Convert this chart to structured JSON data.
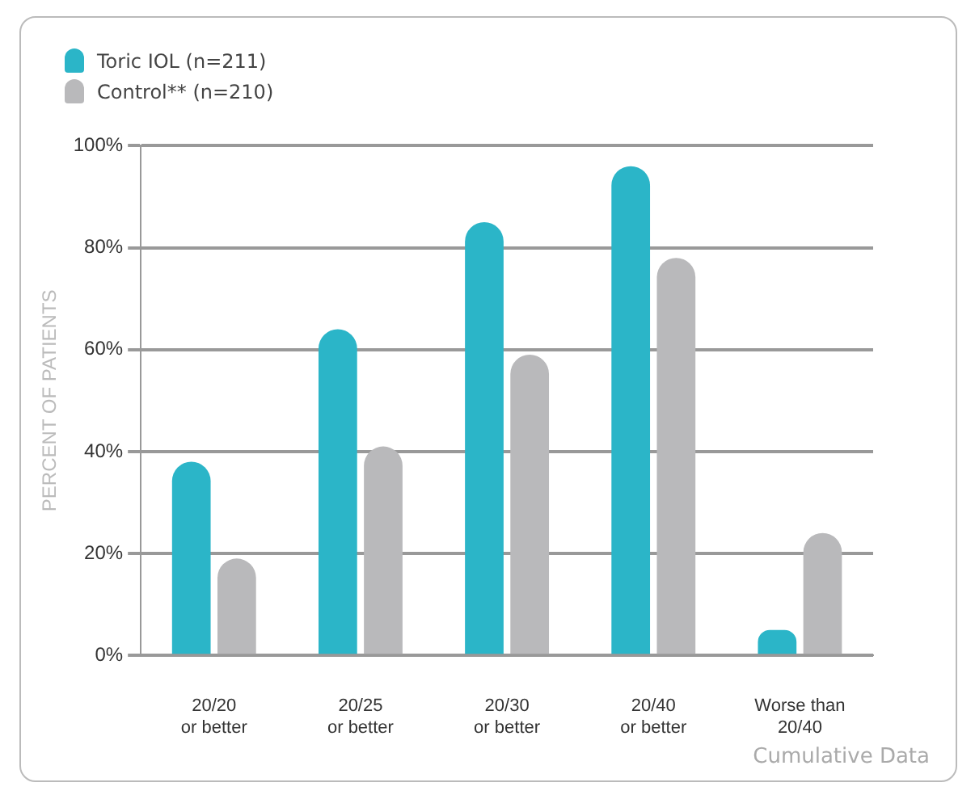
{
  "chart_data": {
    "type": "bar",
    "ylabel": "PERCENT OF PATIENTS",
    "categories": [
      "20/20\nor better",
      "20/25\nor better",
      "20/30\nor better",
      "20/40\nor better",
      "Worse than\n20/40"
    ],
    "series": [
      {
        "name": "Toric IOL (n=211)",
        "color": "#2bb5c8",
        "values": [
          38,
          64,
          85,
          96,
          5
        ]
      },
      {
        "name": "Control** (n=210)",
        "color": "#b9b9bb",
        "values": [
          19,
          41,
          59,
          78,
          24
        ]
      }
    ],
    "ylim": [
      0,
      100
    ],
    "yticks": [
      {
        "value": 0,
        "label": "0%"
      },
      {
        "value": 20,
        "label": "20%"
      },
      {
        "value": 40,
        "label": "40%"
      },
      {
        "value": 60,
        "label": "60%"
      },
      {
        "value": 80,
        "label": "80%"
      },
      {
        "value": 100,
        "label": "100%"
      }
    ],
    "grid": "y",
    "legend": "top left",
    "annotations": [
      "Cumulative Data"
    ]
  }
}
